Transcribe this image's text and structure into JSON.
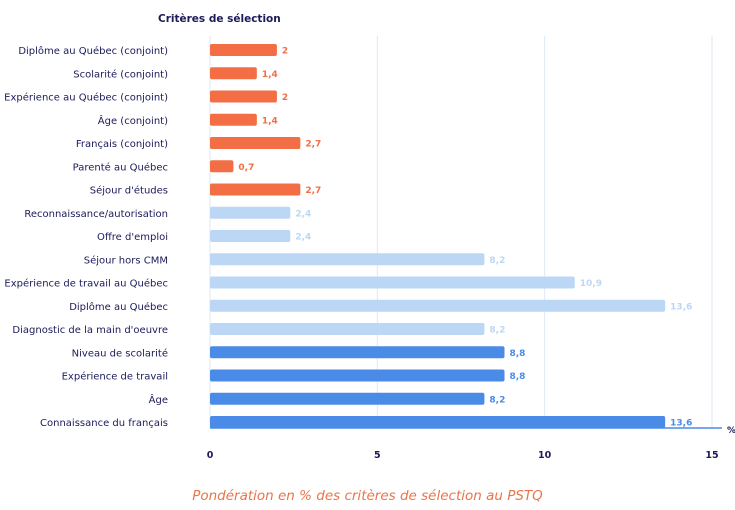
{
  "chart_data": {
    "type": "bar",
    "orientation": "horizontal",
    "title": "Critères de sélection",
    "unit_label": "%",
    "xlim": [
      0,
      15
    ],
    "xticks": [
      "0",
      "5",
      "10",
      "15"
    ],
    "grid": true,
    "categories": [
      "Diplôme au Québec (conjoint)",
      "Scolarité (conjoint)",
      "Expérience au Québec (conjoint)",
      "Âge (conjoint)",
      "Français (conjoint)",
      "Parenté au Québec",
      "Séjour d'études",
      "Reconnaissance/autorisation",
      "Offre d'emploi",
      "Séjour hors CMM",
      "Expérience de travail au Québec",
      "Diplôme au Québec",
      "Diagnostic de la main d'oeuvre",
      "Niveau de scolarité",
      "Expérience de travail",
      "Âge",
      "Connaissance du français"
    ],
    "values": [
      2,
      1.4,
      2,
      1.4,
      2.7,
      0.7,
      2.7,
      2.4,
      2.4,
      8.2,
      10.9,
      13.6,
      8.2,
      8.8,
      8.8,
      8.2,
      13.6
    ],
    "value_labels": [
      "2",
      "1,4",
      "2",
      "1,4",
      "2,7",
      "0,7",
      "2,7",
      "2,4",
      "2,4",
      "8,2",
      "10,9",
      "13,6",
      "8,2",
      "8,8",
      "8,8",
      "8,2",
      "13,6"
    ],
    "groups": [
      "orange",
      "orange",
      "orange",
      "orange",
      "orange",
      "orange",
      "orange",
      "light",
      "light",
      "light",
      "light",
      "light",
      "light",
      "blue",
      "blue",
      "blue",
      "blue"
    ],
    "colors": {
      "orange": "#f36e44",
      "light": "#bcd7f5",
      "blue": "#4a8be8",
      "label": "#1b1a5a",
      "grid": "#dde7f6",
      "axis": "#4a8be8"
    }
  },
  "caption": "Pondération en % des critères de sélection au PSTQ"
}
